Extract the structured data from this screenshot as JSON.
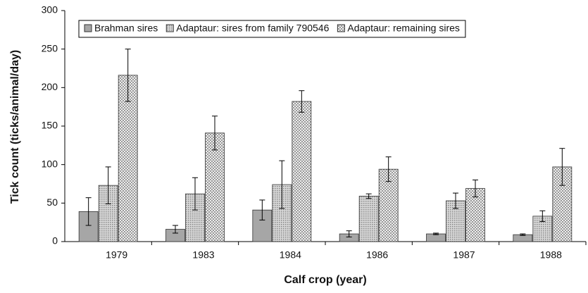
{
  "chart_data": {
    "type": "bar",
    "x_label": "Calf crop (year)",
    "y_label": "Tick count (ticks/animal/day)",
    "categories": [
      "1979",
      "1983",
      "1984",
      "1986",
      "1987",
      "1988"
    ],
    "series": [
      {
        "name": "Brahman sires",
        "color": "#a6a6a6",
        "values": [
          39,
          16,
          41,
          10,
          10,
          9
        ],
        "errors": [
          18,
          5,
          13,
          4,
          1,
          1
        ]
      },
      {
        "name": "Adaptaur: sires from family 790546",
        "color": "#c8c8c8",
        "values": [
          73,
          62,
          74,
          59,
          53,
          33
        ],
        "errors": [
          24,
          21,
          31,
          3,
          10,
          7
        ]
      },
      {
        "name": "Adaptaur: remaining sires",
        "color": "#d9d9d9",
        "values": [
          216,
          141,
          182,
          94,
          69,
          97
        ],
        "errors": [
          34,
          22,
          14,
          16,
          11,
          24
        ]
      }
    ],
    "ylim": [
      0,
      300
    ],
    "yticks": [
      0,
      50,
      100,
      150,
      200,
      250,
      300
    ],
    "grid": false,
    "legend": "top"
  }
}
